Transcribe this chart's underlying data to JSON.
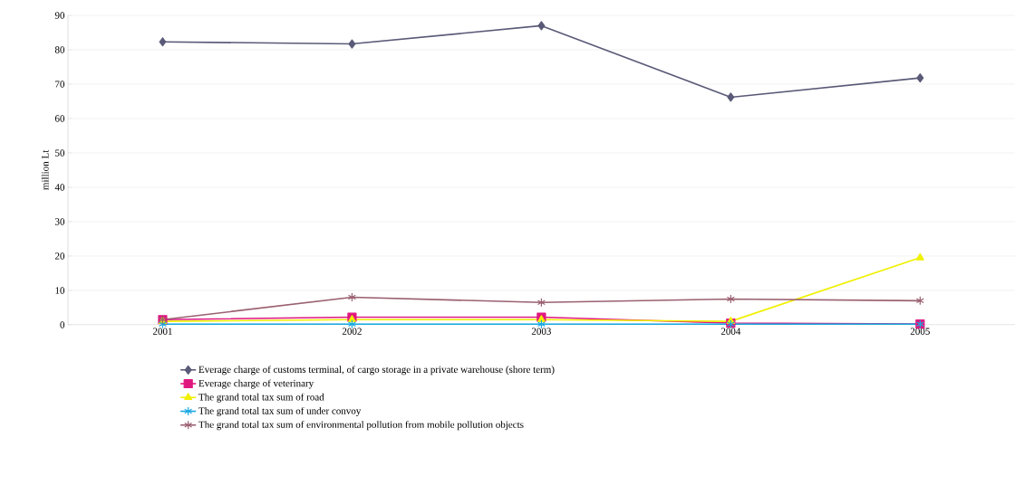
{
  "chart_data": {
    "type": "line",
    "ylabel": "million Lt",
    "categories": [
      "2001",
      "2002",
      "2003",
      "2004",
      "2005"
    ],
    "series": [
      {
        "name": "Everage charge of customs terminal, of cargo storage in a private warehouse (shore term)",
        "color": "#5a5a78",
        "marker": "diamond",
        "values": [
          82.3,
          81.7,
          87,
          66.2,
          71.8
        ]
      },
      {
        "name": "Everage charge of veterinary",
        "color": "#e0177f",
        "marker": "square",
        "values": [
          1.5,
          2.2,
          2.2,
          0.5,
          0.2
        ]
      },
      {
        "name": "The grand total tax sum of road",
        "color": "#f0f000",
        "marker": "triangle",
        "values": [
          1,
          1.5,
          1.5,
          1,
          19.5
        ]
      },
      {
        "name": "The grand total tax sum of under convoy",
        "color": "#1aa8e0",
        "marker": "cross",
        "values": [
          0.2,
          0.2,
          0.2,
          0.2,
          0.2
        ]
      },
      {
        "name": "The grand total tax sum of environmental pollution from mobile pollution objects",
        "color": "#9a6070",
        "marker": "cross",
        "values": [
          1.5,
          8,
          6.5,
          7.5,
          7
        ]
      }
    ],
    "ylim": [
      0,
      90
    ],
    "yticks": [
      0,
      10,
      20,
      30,
      40,
      50,
      60,
      70,
      80,
      90
    ],
    "grid": "y",
    "legend": "bottom"
  }
}
